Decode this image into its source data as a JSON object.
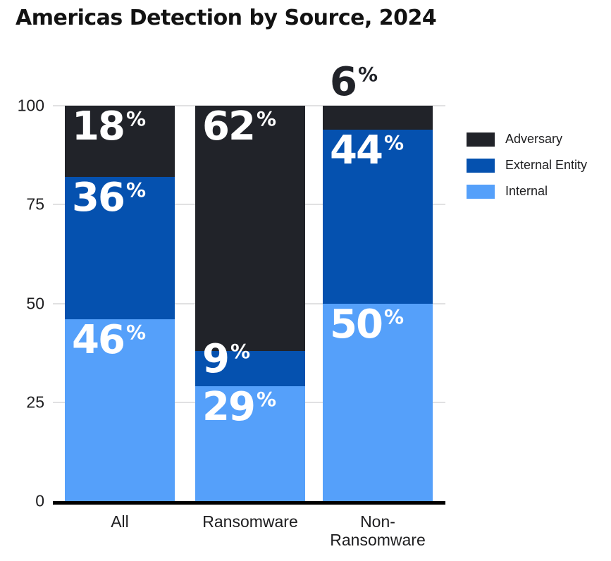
{
  "title": "Americas Detection by Source, 2024",
  "chart_data": {
    "type": "bar",
    "stacked": true,
    "title": "Americas Detection by Source, 2024",
    "categories": [
      "All",
      "Ransomware",
      "Non-Ransomware"
    ],
    "series": [
      {
        "name": "Internal",
        "color": "#55a0fa",
        "values": [
          46,
          29,
          50
        ]
      },
      {
        "name": "External Entity",
        "color": "#0551af",
        "values": [
          36,
          9,
          44
        ]
      },
      {
        "name": "Adversary",
        "color": "#212329",
        "values": [
          18,
          62,
          6
        ]
      }
    ],
    "value_suffix": "%",
    "xlabel": "",
    "ylabel": "",
    "ylim": [
      0,
      100
    ],
    "yticks": [
      0,
      25,
      50,
      75,
      100
    ],
    "grid": "horizontal",
    "legend_position": "right",
    "legend_order": [
      "Adversary",
      "External Entity",
      "Internal"
    ],
    "colors": {
      "gridline": "#e1e1e2",
      "axis_line": "#000000",
      "label_on_bar": "#ffffff",
      "label_above_bar": "#212329",
      "text": "#1d1d1f"
    }
  }
}
